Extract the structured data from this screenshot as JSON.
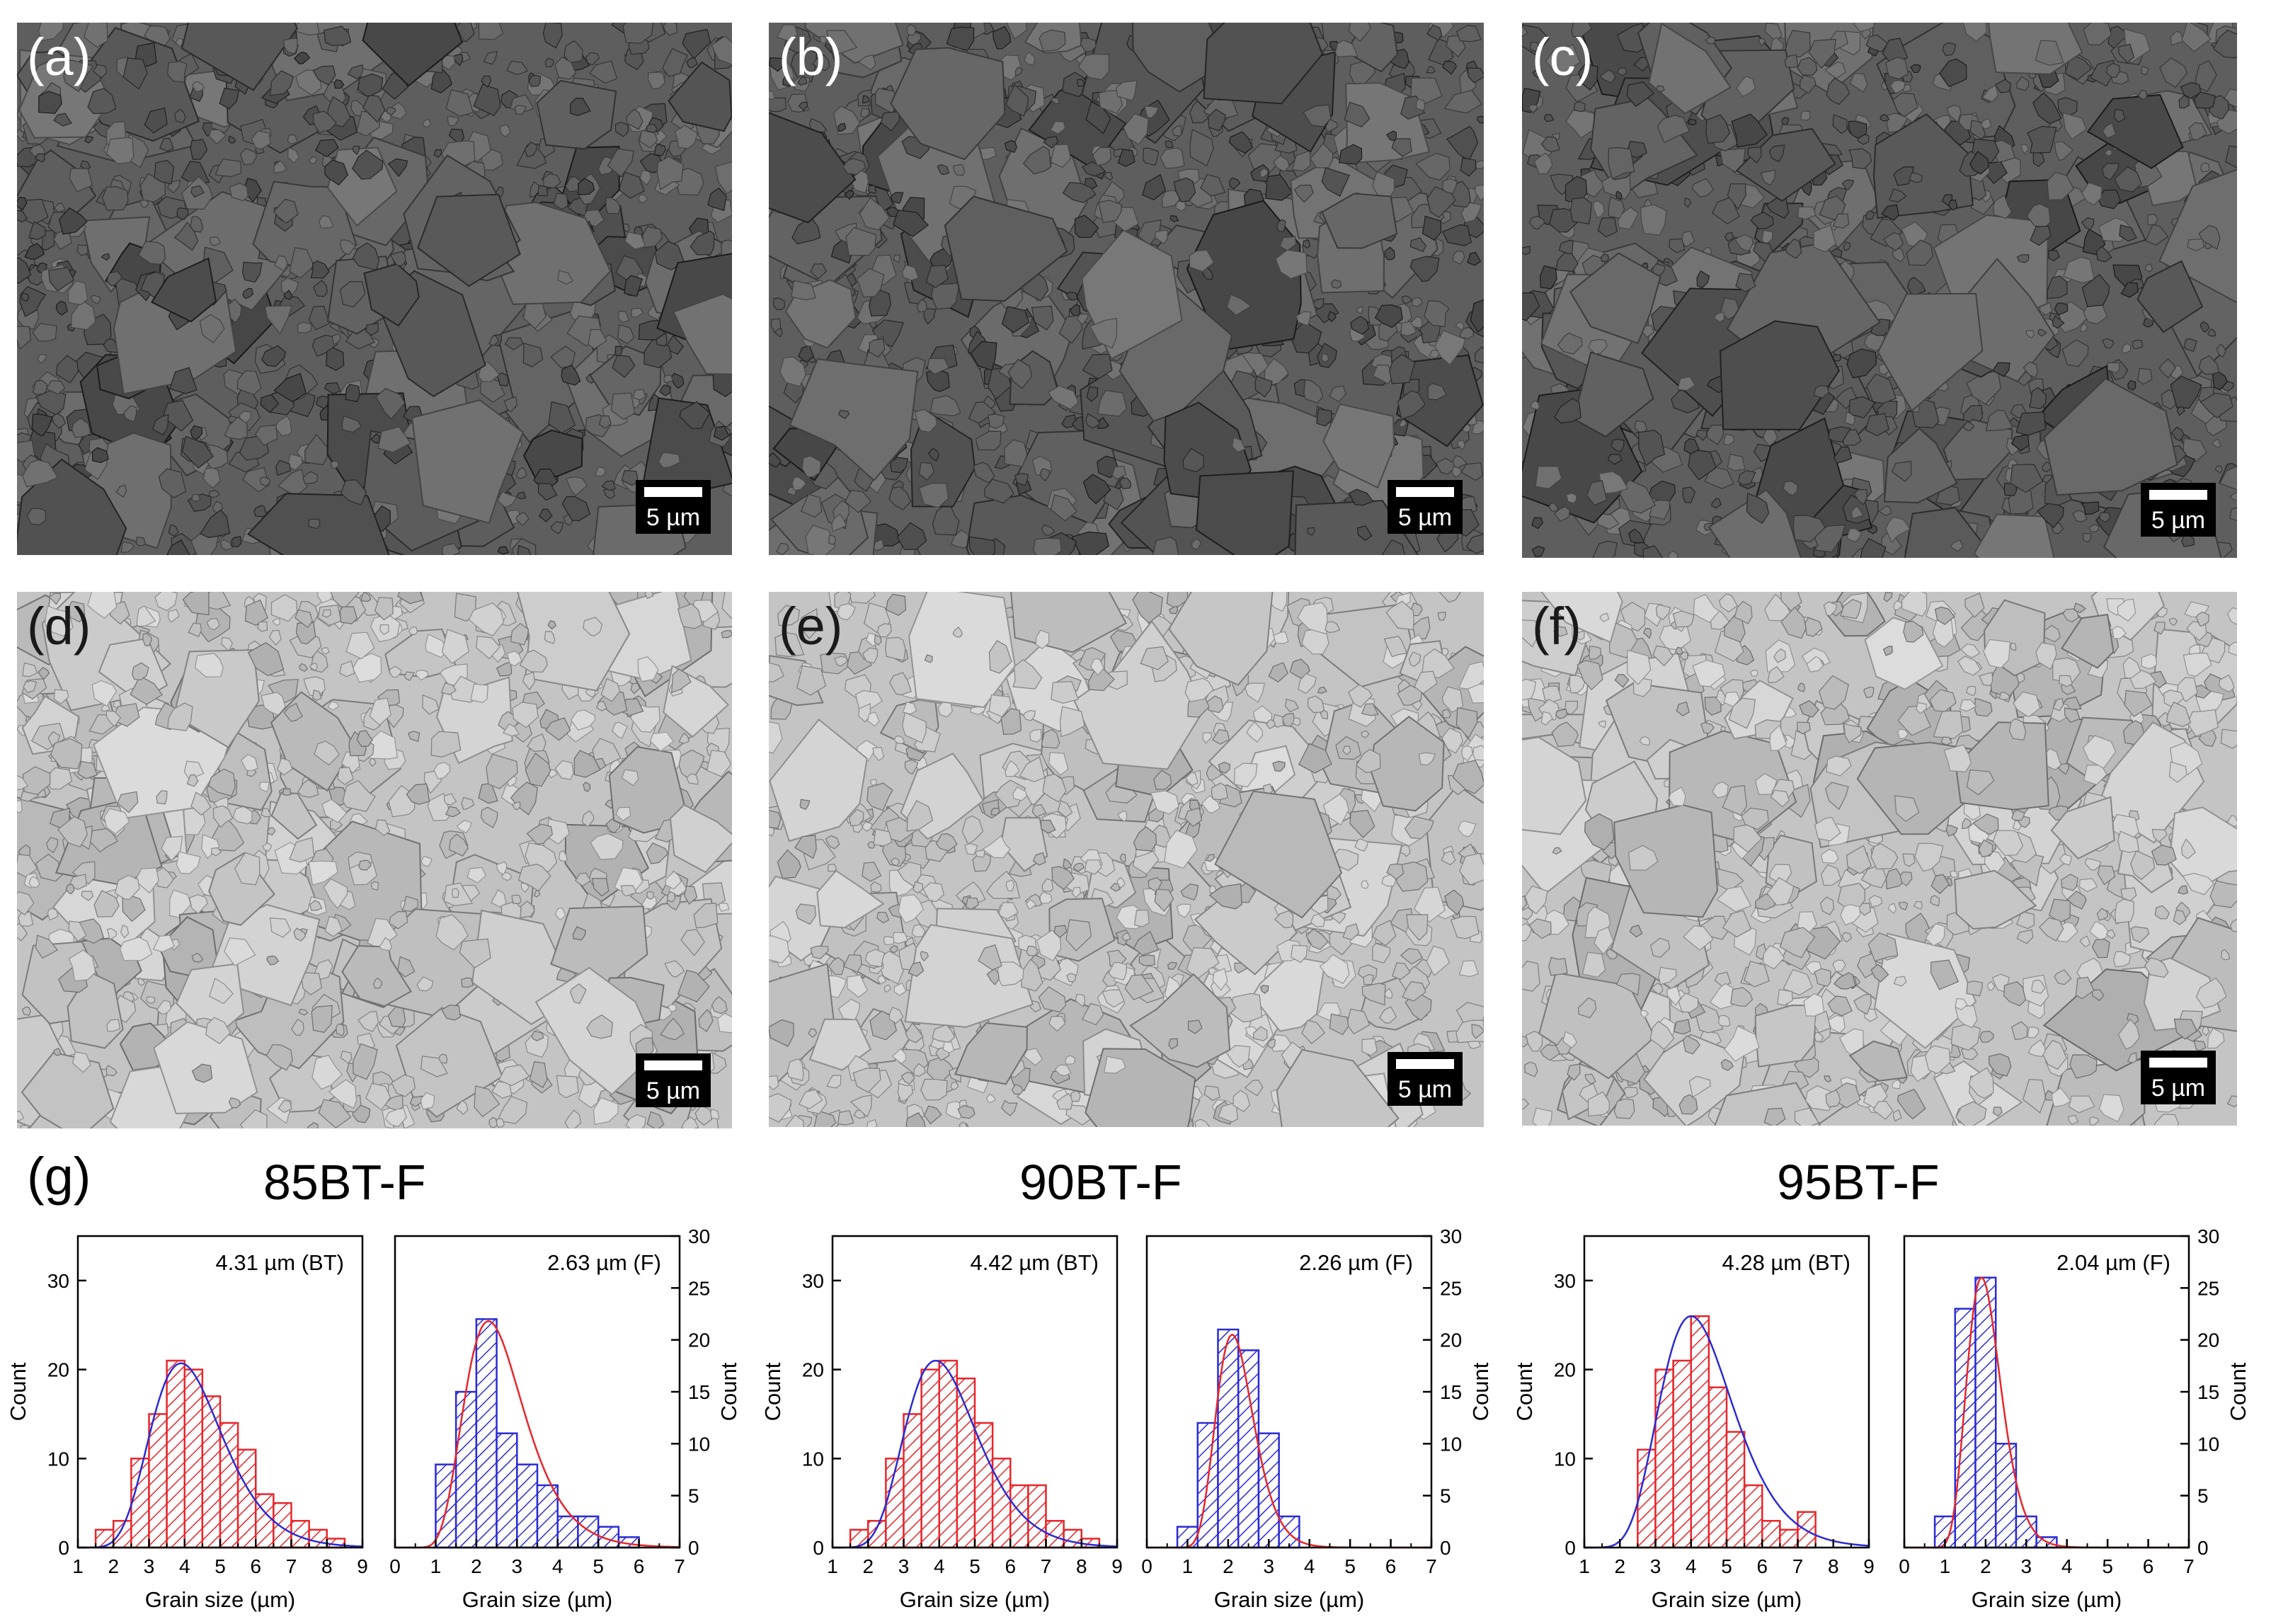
{
  "panels": [
    {
      "label": "(a)",
      "scale": "5 µm",
      "tone": "dark"
    },
    {
      "label": "(b)",
      "scale": "5 µm",
      "tone": "dark"
    },
    {
      "label": "(c)",
      "scale": "5 µm",
      "tone": "dark"
    },
    {
      "label": "(d)",
      "scale": "5 µm",
      "tone": "light"
    },
    {
      "label": "(e)",
      "scale": "5 µm",
      "tone": "light"
    },
    {
      "label": "(f)",
      "scale": "5 µm",
      "tone": "light"
    }
  ],
  "g_label": "(g)",
  "groups": [
    {
      "title": "85BT-F"
    },
    {
      "title": "90BT-F"
    },
    {
      "title": "95BT-F"
    }
  ],
  "colors": {
    "bt": "#e8262b",
    "f": "#2b2bd4",
    "fit_bt": "#2b2bd4",
    "fit_f": "#e8262b"
  },
  "chart_data": [
    {
      "type": "histogram",
      "group": "85BT-F",
      "phase": "BT",
      "annotation": "4.31 µm (BT)",
      "xlabel": "Grain size (µm)",
      "ylabel": "Count",
      "xlim": [
        1,
        9
      ],
      "ylim": [
        0,
        35
      ],
      "xticks": [
        "1",
        "2",
        "3",
        "4",
        "5",
        "6",
        "7",
        "8",
        "9"
      ],
      "yticks": [
        "0",
        "10",
        "20",
        "30"
      ],
      "bins": [
        1.5,
        2.0,
        2.5,
        3.0,
        3.5,
        4.0,
        4.5,
        5.0,
        5.5,
        6.0,
        6.5,
        7.0,
        7.5,
        8.0,
        8.5
      ],
      "counts": [
        2,
        3,
        10,
        15,
        21,
        20,
        17,
        14,
        11,
        6,
        5,
        3,
        2,
        1
      ],
      "fit": {
        "type": "lognormal",
        "peak_x": 3.9,
        "peak_y": 20.7
      },
      "y_axis_side": "left"
    },
    {
      "type": "histogram",
      "group": "85BT-F",
      "phase": "F",
      "annotation": "2.63 µm (F)",
      "xlabel": "Grain size (µm)",
      "ylabel": "Count",
      "xlim": [
        0,
        7
      ],
      "ylim": [
        0,
        30
      ],
      "xticks": [
        "0",
        "1",
        "2",
        "3",
        "4",
        "5",
        "6",
        "7"
      ],
      "yticks": [
        "0",
        "5",
        "10",
        "15",
        "20",
        "25",
        "30"
      ],
      "bins": [
        1.0,
        1.5,
        2.0,
        2.5,
        3.0,
        3.5,
        4.0,
        4.5,
        5.0,
        5.5,
        6.0
      ],
      "counts": [
        8,
        15,
        22,
        11,
        8,
        6,
        3,
        3,
        2,
        1
      ],
      "fit": {
        "type": "lognormal",
        "peak_x": 2.3,
        "peak_y": 21.8
      },
      "y_axis_side": "right"
    },
    {
      "type": "histogram",
      "group": "90BT-F",
      "phase": "BT",
      "annotation": "4.42 µm (BT)",
      "xlabel": "Grain size (µm)",
      "ylabel": "Count",
      "xlim": [
        1,
        9
      ],
      "ylim": [
        0,
        35
      ],
      "xticks": [
        "1",
        "2",
        "3",
        "4",
        "5",
        "6",
        "7",
        "8",
        "9"
      ],
      "yticks": [
        "0",
        "10",
        "20",
        "30"
      ],
      "bins": [
        1.5,
        2.0,
        2.5,
        3.0,
        3.5,
        4.0,
        4.5,
        5.0,
        5.5,
        6.0,
        6.5,
        7.0,
        7.5,
        8.0,
        8.5
      ],
      "counts": [
        2,
        3,
        10,
        15,
        20,
        21,
        19,
        14,
        10,
        7,
        7,
        3,
        2,
        1
      ],
      "fit": {
        "type": "lognormal",
        "peak_x": 3.9,
        "peak_y": 21
      },
      "y_axis_side": "left"
    },
    {
      "type": "histogram",
      "group": "90BT-F",
      "phase": "F",
      "annotation": "2.26 µm (F)",
      "xlabel": "Grain size (µm)",
      "ylabel": "Count",
      "xlim": [
        0,
        7
      ],
      "ylim": [
        0,
        30
      ],
      "xticks": [
        "0",
        "1",
        "2",
        "3",
        "4",
        "5",
        "6",
        "7"
      ],
      "yticks": [
        "0",
        "5",
        "10",
        "15",
        "20",
        "25",
        "30"
      ],
      "bins": [
        0.75,
        1.25,
        1.75,
        2.25,
        2.75,
        3.25,
        3.75
      ],
      "counts": [
        2,
        12,
        21,
        19,
        11,
        3
      ],
      "fit": {
        "type": "lognormal",
        "peak_x": 2.1,
        "peak_y": 20.5
      },
      "y_axis_side": "right"
    },
    {
      "type": "histogram",
      "group": "95BT-F",
      "phase": "BT",
      "annotation": "4.28 µm (BT)",
      "xlabel": "Grain size (µm)",
      "ylabel": "Count",
      "xlim": [
        1,
        9
      ],
      "ylim": [
        0,
        35
      ],
      "xticks": [
        "1",
        "2",
        "3",
        "4",
        "5",
        "6",
        "7",
        "8",
        "9"
      ],
      "yticks": [
        "0",
        "10",
        "20",
        "30"
      ],
      "bins": [
        2.5,
        3.0,
        3.5,
        4.0,
        4.5,
        5.0,
        5.5,
        6.0,
        6.5,
        7.0,
        7.5
      ],
      "counts": [
        11,
        20,
        21,
        26,
        18,
        13,
        7,
        3,
        2,
        4
      ],
      "fit": {
        "type": "lognormal",
        "peak_x": 4.0,
        "peak_y": 26
      },
      "y_axis_side": "left"
    },
    {
      "type": "histogram",
      "group": "95BT-F",
      "phase": "F",
      "annotation": "2.04 µm (F)",
      "xlabel": "Grain size (µm)",
      "ylabel": "Count",
      "xlim": [
        0,
        7
      ],
      "ylim": [
        0,
        30
      ],
      "xticks": [
        "0",
        "1",
        "2",
        "3",
        "4",
        "5",
        "6",
        "7"
      ],
      "yticks": [
        "0",
        "5",
        "10",
        "15",
        "20",
        "25",
        "30"
      ],
      "bins": [
        0.75,
        1.25,
        1.75,
        2.25,
        2.75,
        3.25,
        3.75
      ],
      "counts": [
        3,
        23,
        26,
        10,
        3,
        1
      ],
      "fit": {
        "type": "lognormal",
        "peak_x": 1.9,
        "peak_y": 26
      },
      "y_axis_side": "right"
    }
  ]
}
